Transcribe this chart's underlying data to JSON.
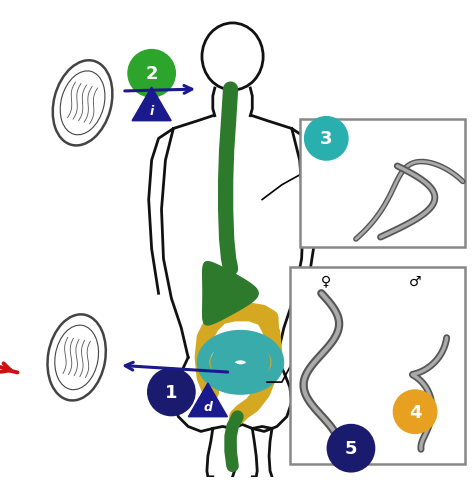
{
  "background_color": "#ffffff",
  "figure_size": [
    4.74,
    4.81
  ],
  "dpi": 100,
  "colors": {
    "red_arrow": "#cc1111",
    "blue_arrow": "#1a1a8c",
    "green_circle": "#2da52d",
    "teal_circle": "#2aafaf",
    "gold_circle": "#e8a020",
    "dark_blue_circle": "#1a1a6e",
    "body_outline": "#111111",
    "gut_green": "#2d7a2d",
    "gut_yellow": "#d4a820",
    "gut_teal": "#3aabab",
    "triangle_blue": "#1a1a8c",
    "egg_outline": "#444444",
    "worm_gray": "#aaaaaa",
    "worm_dark": "#555555",
    "box_border": "#888888"
  }
}
